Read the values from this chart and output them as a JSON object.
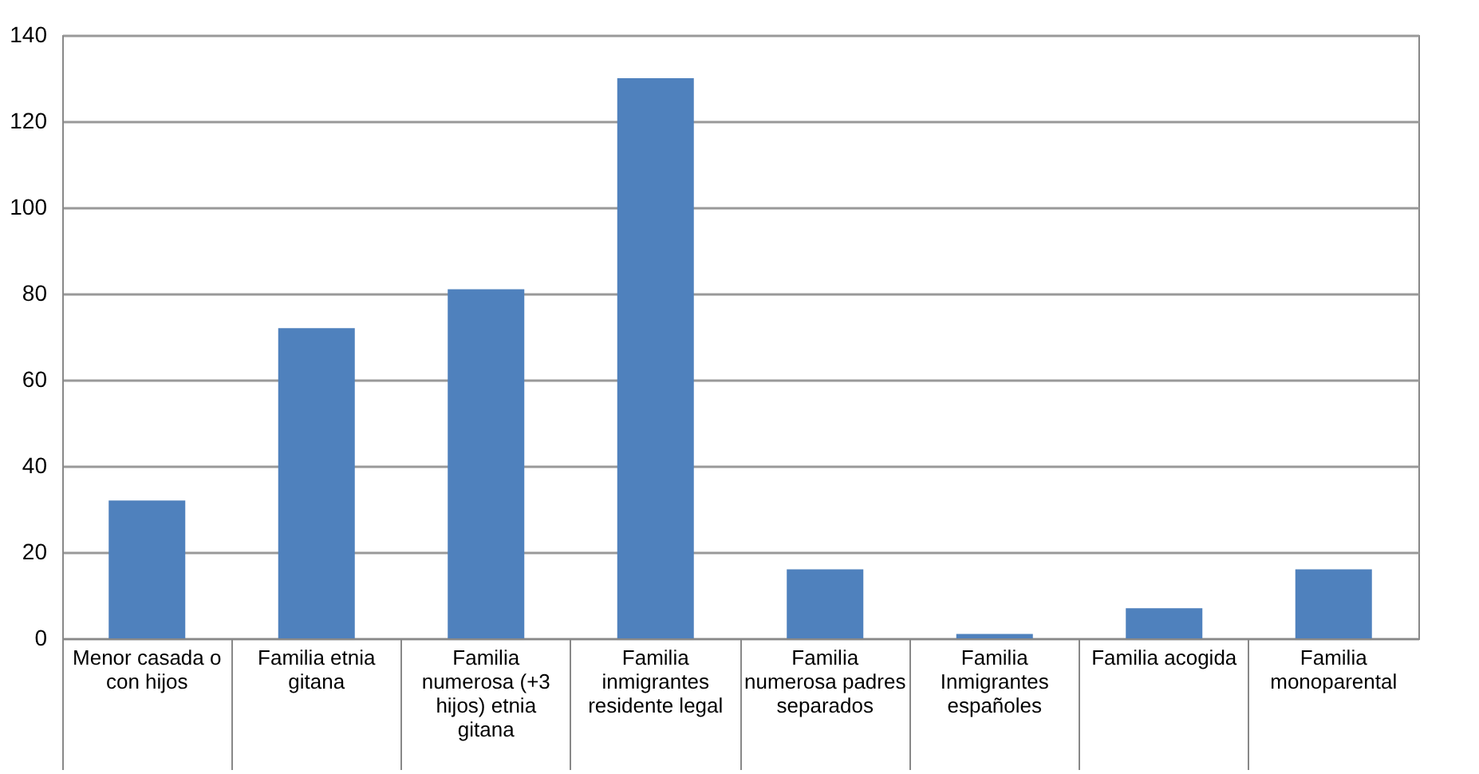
{
  "chart_data": {
    "type": "bar",
    "categories": [
      "Menor casada o con hijos",
      "Familia etnia gitana",
      "Familia numerosa (+3 hijos) etnia gitana",
      "Familia inmigrantes residente legal",
      "Familia numerosa padres separados",
      "Familia Inmigrantes españoles",
      "Familia acogida",
      "Familia monoparental"
    ],
    "values": [
      32,
      72,
      81,
      130,
      16,
      1,
      7,
      16
    ],
    "color": "#4f81bd",
    "ylim": [
      0,
      140
    ],
    "yticks": [
      0,
      20,
      40,
      60,
      80,
      100,
      120,
      140
    ],
    "grid": "y"
  }
}
